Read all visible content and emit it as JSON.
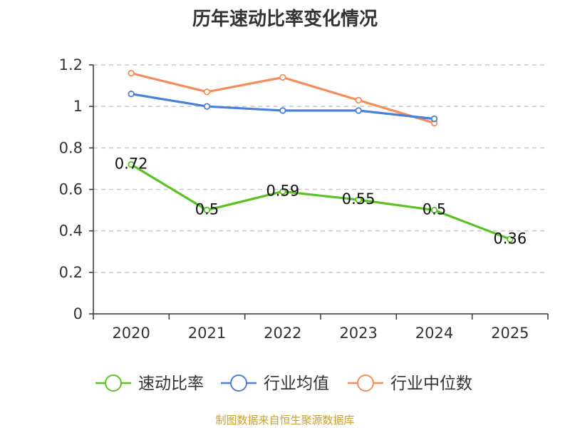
{
  "chart_data": {
    "type": "line",
    "title": "历年速动比率变化情况",
    "categories": [
      "2020",
      "2021",
      "2022",
      "2023",
      "2024",
      "2025"
    ],
    "ylim": [
      0,
      1.2
    ],
    "yticks": [
      "0",
      "0.2",
      "0.4",
      "0.6",
      "0.8",
      "1",
      "1.2"
    ],
    "grid": true,
    "legend_position": "bottom",
    "series": [
      {
        "name": "速动比率",
        "color": "#5bc226",
        "values": [
          0.72,
          0.5,
          0.59,
          0.55,
          0.5,
          0.36
        ],
        "labels": [
          "0.72",
          "0.5",
          "0.59",
          "0.55",
          "0.5",
          "0.36"
        ]
      },
      {
        "name": "行业均值",
        "color": "#4a7fdb",
        "values": [
          1.06,
          1.0,
          0.98,
          0.98,
          0.94,
          null
        ]
      },
      {
        "name": "行业中位数",
        "color": "#f58d5a",
        "values": [
          1.16,
          1.07,
          1.14,
          1.03,
          0.92,
          null
        ]
      }
    ]
  },
  "source": "制图数据来自恒生聚源数据库"
}
